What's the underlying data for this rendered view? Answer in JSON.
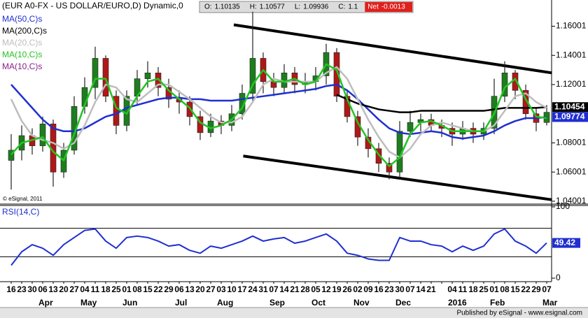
{
  "chart_data": {
    "type": "candlestick",
    "title": "(EUR A0-FX - US DOLLAR/EURO,D) Dynamic,0",
    "quote": [
      {
        "label": "O:",
        "value": 1.10135
      },
      {
        "label": "H:",
        "value": 1.10577
      },
      {
        "label": "L:",
        "value": 1.09936
      },
      {
        "label": "C:",
        "value": 1.1
      },
      {
        "label": "Net",
        "value": -0.0013
      }
    ],
    "categories": [
      "16",
      "23",
      "30",
      "06",
      "13",
      "20",
      "27",
      "04",
      "11",
      "18",
      "25",
      "01",
      "08",
      "15",
      "22",
      "29",
      "06",
      "13",
      "20",
      "27",
      "03",
      "10",
      "17",
      "24",
      "31",
      "07",
      "14",
      "21",
      "28",
      "05",
      "12",
      "19",
      "26",
      "02",
      "09",
      "16",
      "23",
      "30",
      "07",
      "14",
      "21",
      null,
      "04",
      "11",
      "18",
      "25",
      "01",
      "08",
      "15",
      "22",
      "29",
      "07"
    ],
    "months": [
      {
        "label": "Apr",
        "index": 3
      },
      {
        "label": "May",
        "index": 7
      },
      {
        "label": "Jun",
        "index": 11
      },
      {
        "label": "Jul",
        "index": 16
      },
      {
        "label": "Aug",
        "index": 20
      },
      {
        "label": "Sep",
        "index": 25
      },
      {
        "label": "Oct",
        "index": 29
      },
      {
        "label": "Nov",
        "index": 33
      },
      {
        "label": "Dec",
        "index": 37
      },
      {
        "label": "2016",
        "index": 42
      },
      {
        "label": "Feb",
        "index": 46
      },
      {
        "label": "Mar",
        "index": 51
      }
    ],
    "open": [
      1.068,
      1.075,
      1.085,
      1.078,
      1.093,
      1.06,
      1.075,
      1.105,
      1.118,
      1.138,
      1.112,
      1.092,
      1.112,
      1.124,
      1.128,
      1.118,
      1.11,
      1.108,
      1.098,
      1.087,
      1.095,
      1.092,
      1.1,
      1.114,
      1.138,
      1.122,
      1.118,
      1.128,
      1.12,
      1.122,
      1.126,
      1.142,
      1.112,
      1.098,
      1.084,
      1.076,
      1.066,
      1.06,
      1.088,
      1.094,
      1.096,
      1.092,
      1.09,
      1.086,
      1.09,
      1.086,
      1.09,
      1.112,
      1.128,
      1.116,
      1.1,
      1.094
    ],
    "high": [
      1.086,
      1.092,
      1.09,
      1.098,
      1.096,
      1.08,
      1.112,
      1.125,
      1.146,
      1.14,
      1.116,
      1.116,
      1.13,
      1.136,
      1.132,
      1.124,
      1.116,
      1.112,
      1.102,
      1.1,
      1.099,
      1.106,
      1.12,
      1.17,
      1.142,
      1.128,
      1.134,
      1.132,
      1.128,
      1.132,
      1.148,
      1.145,
      1.116,
      1.102,
      1.09,
      1.08,
      1.07,
      1.095,
      1.102,
      1.1,
      1.1,
      1.096,
      1.094,
      1.095,
      1.094,
      1.094,
      1.124,
      1.136,
      1.13,
      1.12,
      1.104,
      1.106
    ],
    "low": [
      1.048,
      1.068,
      1.072,
      1.074,
      1.05,
      1.056,
      1.072,
      1.1,
      1.11,
      1.108,
      1.086,
      1.088,
      1.106,
      1.118,
      1.112,
      1.104,
      1.1,
      1.092,
      1.082,
      1.084,
      1.086,
      1.088,
      1.096,
      1.108,
      1.114,
      1.112,
      1.114,
      1.114,
      1.114,
      1.116,
      1.12,
      1.108,
      1.094,
      1.078,
      1.07,
      1.06,
      1.055,
      1.056,
      1.084,
      1.088,
      1.088,
      1.084,
      1.078,
      1.082,
      1.08,
      1.082,
      1.086,
      1.108,
      1.11,
      1.096,
      1.088,
      1.092
    ],
    "close": [
      1.075,
      1.085,
      1.078,
      1.093,
      1.06,
      1.075,
      1.105,
      1.118,
      1.138,
      1.112,
      1.092,
      1.112,
      1.124,
      1.128,
      1.118,
      1.11,
      1.108,
      1.098,
      1.087,
      1.095,
      1.092,
      1.1,
      1.114,
      1.138,
      1.122,
      1.118,
      1.128,
      1.12,
      1.122,
      1.126,
      1.142,
      1.112,
      1.098,
      1.084,
      1.076,
      1.066,
      1.06,
      1.088,
      1.094,
      1.096,
      1.092,
      1.09,
      1.086,
      1.09,
      1.086,
      1.09,
      1.112,
      1.128,
      1.116,
      1.1,
      1.094,
      1.101
    ],
    "up_color": "#1e7d1e",
    "down_color": "#b01818",
    "series": [
      {
        "name": "MA(50,C)s",
        "color": "#1f2fd0",
        "values": [
          1.12,
          1.112,
          1.104,
          1.096,
          1.09,
          1.088,
          1.088,
          1.09,
          1.094,
          1.098,
          1.1,
          1.104,
          1.106,
          1.108,
          1.11,
          1.111,
          1.111,
          1.11,
          1.11,
          1.109,
          1.109,
          1.109,
          1.11,
          1.111,
          1.112,
          1.113,
          1.114,
          1.115,
          1.116,
          1.117,
          1.119,
          1.12,
          1.116,
          1.11,
          1.103,
          1.096,
          1.09,
          1.087,
          1.086,
          1.087,
          1.088,
          1.087,
          1.084,
          1.083,
          1.084,
          1.085,
          1.088,
          1.092,
          1.095,
          1.097,
          1.097,
          1.09774
        ]
      },
      {
        "name": "MA(200,C)s",
        "color": "#000000",
        "values": [
          null,
          null,
          null,
          null,
          null,
          null,
          null,
          null,
          null,
          null,
          null,
          null,
          null,
          null,
          null,
          null,
          null,
          null,
          null,
          null,
          null,
          null,
          null,
          null,
          null,
          null,
          null,
          null,
          null,
          null,
          null,
          1.113,
          1.11,
          1.107,
          1.105,
          1.103,
          1.102,
          1.101,
          1.101,
          1.102,
          1.102,
          1.102,
          1.102,
          1.102,
          1.102,
          1.102,
          1.103,
          1.104,
          1.104,
          1.104,
          1.104,
          1.10454
        ]
      },
      {
        "name": "MA(20,C)s",
        "color": "#bdbdbd",
        "values": [
          1.11,
          1.095,
          1.085,
          1.082,
          1.08,
          1.076,
          1.08,
          1.092,
          1.108,
          1.12,
          1.118,
          1.11,
          1.108,
          1.114,
          1.12,
          1.12,
          1.115,
          1.11,
          1.104,
          1.098,
          1.094,
          1.094,
          1.098,
          1.108,
          1.12,
          1.124,
          1.122,
          1.122,
          1.122,
          1.122,
          1.128,
          1.132,
          1.124,
          1.11,
          1.096,
          1.084,
          1.074,
          1.07,
          1.076,
          1.086,
          1.092,
          1.094,
          1.092,
          1.09,
          1.088,
          1.088,
          1.092,
          1.102,
          1.112,
          1.114,
          1.108,
          1.104
        ]
      },
      {
        "name": "MA(10,C)s",
        "color": "#22c422",
        "values": [
          1.072,
          1.08,
          1.082,
          1.084,
          1.074,
          1.068,
          1.086,
          1.106,
          1.124,
          1.124,
          1.104,
          1.1,
          1.112,
          1.122,
          1.124,
          1.116,
          1.11,
          1.104,
          1.094,
          1.09,
          1.092,
          1.096,
          1.104,
          1.12,
          1.13,
          1.122,
          1.122,
          1.124,
          1.12,
          1.122,
          1.134,
          1.13,
          1.11,
          1.094,
          1.082,
          1.072,
          1.064,
          1.07,
          1.086,
          1.094,
          1.095,
          1.092,
          1.088,
          1.088,
          1.088,
          1.088,
          1.1,
          1.118,
          1.124,
          1.11,
          1.098,
          1.097
        ]
      },
      {
        "name": "MA(10,C)s",
        "color": "#8a1f8a",
        "values": [
          null,
          null,
          null,
          null,
          null,
          null,
          null,
          null,
          null,
          null,
          null,
          null,
          null,
          null,
          null,
          null,
          null,
          null,
          null,
          null,
          null,
          null,
          null,
          null,
          null,
          null,
          null,
          null,
          null,
          null,
          null,
          null,
          null,
          null,
          null,
          null,
          null,
          null,
          null,
          null,
          null,
          null,
          null,
          null,
          null,
          null,
          null,
          null,
          null,
          null,
          null,
          null
        ]
      }
    ],
    "last_labels": [
      {
        "value": 1.10454,
        "label": "1.10454",
        "color": "#000000"
      },
      {
        "value": 1.09774,
        "label": "1.09774",
        "color": "#1f2fd0"
      }
    ],
    "channels": [
      {
        "x": [
          21.2,
          51.5
        ],
        "y": [
          1.161,
          1.128
        ]
      },
      {
        "x": [
          22.1,
          51.5
        ],
        "y": [
          1.071,
          1.041
        ]
      }
    ],
    "ylim": [
      1.039,
      1.178
    ],
    "yticks": [
      1.04001,
      1.06001,
      1.08001,
      1.12001,
      1.14001,
      1.16001
    ],
    "copyright": "© eSignal, 2011",
    "rsi": {
      "name": "RSI(14,C)",
      "color": "#1f2fd0",
      "values": [
        18,
        37,
        47,
        42,
        32,
        47,
        57,
        67,
        69,
        52,
        42,
        57,
        59,
        57,
        52,
        45,
        47,
        39,
        35,
        45,
        42,
        47,
        52,
        59,
        52,
        55,
        57,
        49,
        52,
        57,
        62,
        52,
        35,
        32,
        27,
        25,
        25,
        57,
        52,
        52,
        47,
        45,
        37,
        45,
        39,
        45,
        62,
        69,
        52,
        45,
        35,
        49.42
      ],
      "levels": [
        70,
        30
      ],
      "ylim": [
        0,
        100
      ],
      "yticks": [
        0,
        100
      ]
    },
    "footer": "Published by eSignal - www.esignal.com"
  }
}
